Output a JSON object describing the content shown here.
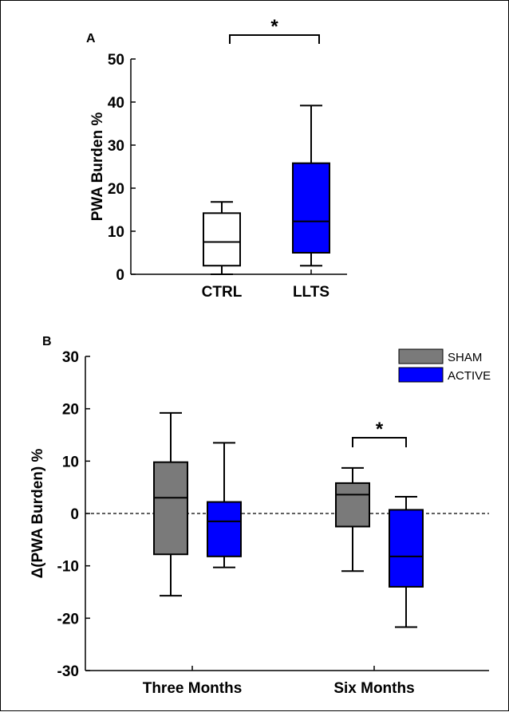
{
  "chart_data": [
    {
      "panel_label": "A",
      "type": "box",
      "ylabel": "PWA Burden %",
      "xlabel": "",
      "ylim": [
        0,
        50
      ],
      "yticks": [
        0,
        10,
        20,
        30,
        40,
        50
      ],
      "categories": [
        "CTRL",
        "LLTS"
      ],
      "boxes": [
        {
          "category": "CTRL",
          "min": 0,
          "q1": 2,
          "median": 7.5,
          "q3": 14.2,
          "max": 16.8,
          "color": "#ffffff"
        },
        {
          "category": "LLTS",
          "min": 2,
          "q1": 5,
          "median": 12.3,
          "q3": 25.8,
          "max": 39.2,
          "color": "#0000ff"
        }
      ],
      "significance": [
        {
          "between": [
            "CTRL",
            "LLTS"
          ],
          "label": "*"
        }
      ]
    },
    {
      "panel_label": "B",
      "type": "box",
      "ylabel": "Δ(PWA Burden) %",
      "xlabel": "",
      "ylim": [
        -30,
        30
      ],
      "yticks": [
        -30,
        -20,
        -10,
        0,
        10,
        20,
        30
      ],
      "categories": [
        "Three Months",
        "Six Months"
      ],
      "legend": {
        "position": "top-right",
        "entries": [
          {
            "name": "SHAM",
            "color": "#7a7a7a"
          },
          {
            "name": "ACTIVE",
            "color": "#0000ff"
          }
        ]
      },
      "reference_line": {
        "y": 0,
        "style": "dashed"
      },
      "series": [
        {
          "name": "SHAM",
          "color": "#7a7a7a",
          "boxes": [
            {
              "category": "Three Months",
              "min": -15.7,
              "q1": -7.8,
              "median": 3,
              "q3": 9.8,
              "max": 19.2
            },
            {
              "category": "Six Months",
              "min": -11,
              "q1": -2.5,
              "median": 3.6,
              "q3": 5.8,
              "max": 8.7
            }
          ]
        },
        {
          "name": "ACTIVE",
          "color": "#0000ff",
          "boxes": [
            {
              "category": "Three Months",
              "min": -10.3,
              "q1": -8.2,
              "median": -1.5,
              "q3": 2.2,
              "max": 13.5
            },
            {
              "category": "Six Months",
              "min": -21.7,
              "q1": -14,
              "median": -8.2,
              "q3": 0.7,
              "max": 3.2
            }
          ]
        }
      ],
      "significance": [
        {
          "category": "Six Months",
          "between": [
            "SHAM",
            "ACTIVE"
          ],
          "label": "*"
        }
      ]
    }
  ]
}
